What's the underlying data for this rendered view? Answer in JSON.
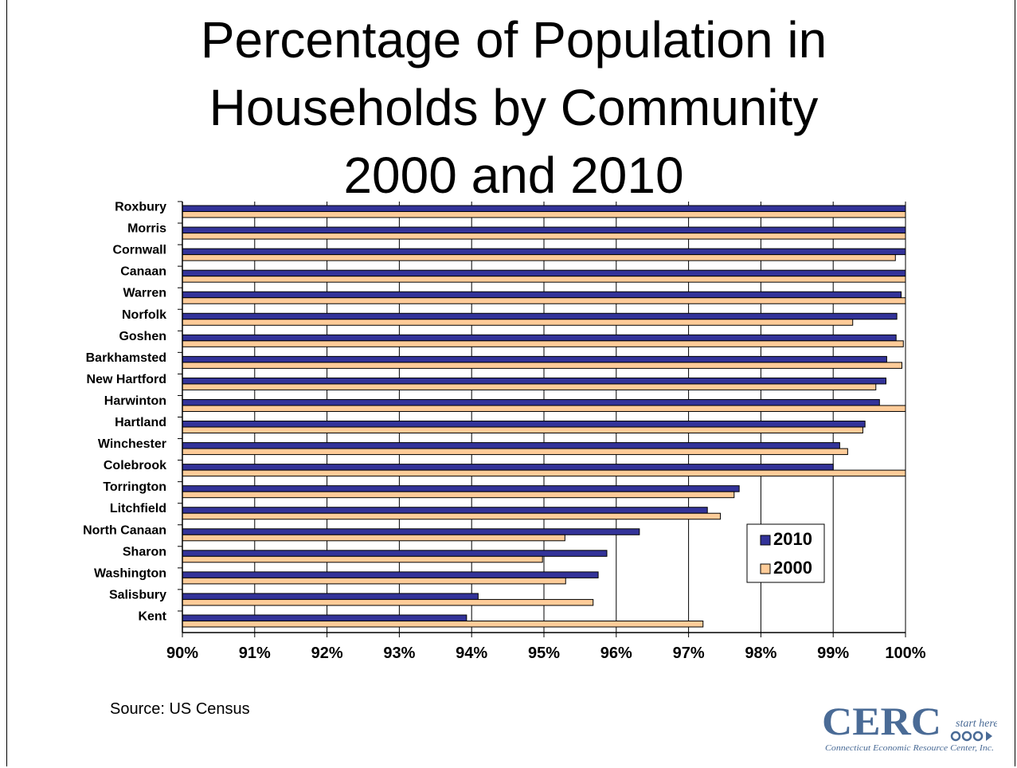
{
  "title_lines": [
    "Percentage of Population in",
    "Households by Community",
    "2000 and 2010"
  ],
  "source": "Source:  US Census",
  "logo": {
    "mark": "CERC",
    "tagline": "start here",
    "caption": "Connecticut Economic Resource Center, Inc.",
    "color": "#4a6b96"
  },
  "chart_data": {
    "type": "bar",
    "orientation": "horizontal",
    "title": "Percentage of Population in Households by Community 2000 and 2010",
    "xlim": [
      90,
      100
    ],
    "x_ticks": [
      "90%",
      "91%",
      "92%",
      "93%",
      "94%",
      "95%",
      "96%",
      "97%",
      "98%",
      "99%",
      "100%"
    ],
    "grid": true,
    "legend_position": "inside-lower-right",
    "categories": [
      "Roxbury",
      "Morris",
      "Cornwall",
      "Canaan",
      "Warren",
      "Norfolk",
      "Goshen",
      "Barkhamsted",
      "New Hartford",
      "Harwinton",
      "Hartland",
      "Winchester",
      "Colebrook",
      "Torrington",
      "Litchfield",
      "North Canaan",
      "Sharon",
      "Washington",
      "Salisbury",
      "Kent"
    ],
    "series": [
      {
        "name": "2010",
        "color": "#333399",
        "values": [
          100.0,
          100.0,
          100.0,
          100.0,
          99.94,
          99.88,
          99.87,
          99.74,
          99.73,
          99.64,
          99.44,
          99.09,
          99.0,
          97.7,
          97.26,
          96.32,
          95.87,
          95.75,
          94.09,
          93.93
        ]
      },
      {
        "name": "2000",
        "color": "#ffcc99",
        "values": [
          100.0,
          100.0,
          99.86,
          100.0,
          100.0,
          99.27,
          99.97,
          99.95,
          99.59,
          100.0,
          99.41,
          99.2,
          100.0,
          97.63,
          97.44,
          95.29,
          94.98,
          95.3,
          95.68,
          97.2
        ]
      }
    ]
  }
}
